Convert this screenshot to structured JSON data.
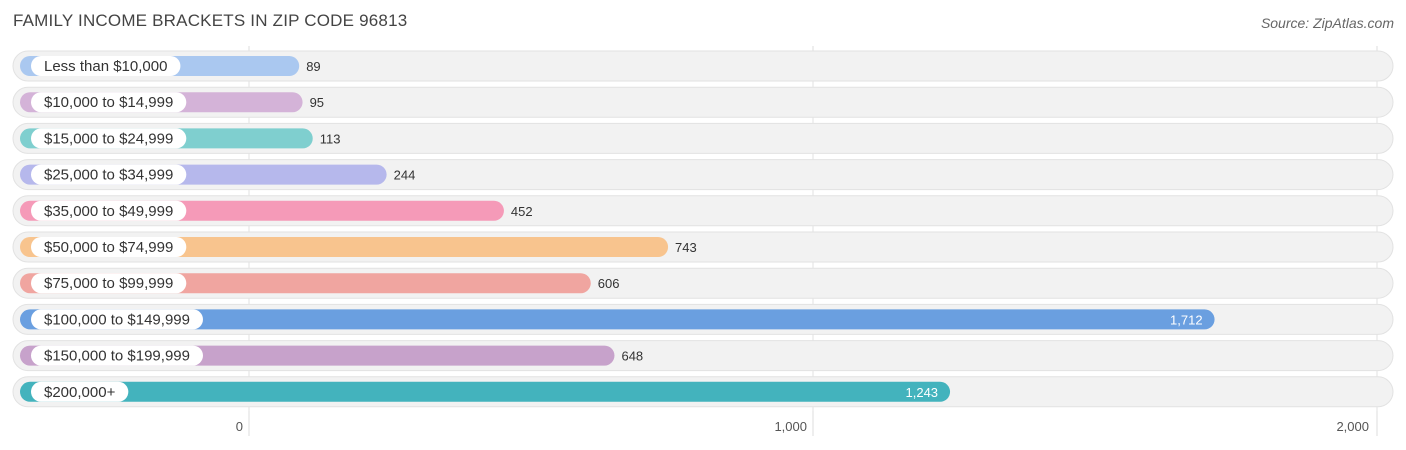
{
  "title": "FAMILY INCOME BRACKETS IN ZIP CODE 96813",
  "source": "Source: ZipAtlas.com",
  "chart_data": {
    "type": "bar",
    "orientation": "horizontal",
    "title": "FAMILY INCOME BRACKETS IN ZIP CODE 96813",
    "categories": [
      "Less than $10,000",
      "$10,000 to $14,999",
      "$15,000 to $24,999",
      "$25,000 to $34,999",
      "$35,000 to $49,999",
      "$50,000 to $74,999",
      "$75,000 to $99,999",
      "$100,000 to $149,999",
      "$150,000 to $199,999",
      "$200,000+"
    ],
    "values": [
      89,
      95,
      113,
      244,
      452,
      743,
      606,
      1712,
      648,
      1243
    ],
    "value_labels": [
      "89",
      "95",
      "113",
      "244",
      "452",
      "743",
      "606",
      "1,712",
      "648",
      "1,243"
    ],
    "colors": [
      "#aac8f0",
      "#d4b3d8",
      "#7fcfcf",
      "#b6b8ec",
      "#f59ab8",
      "#f8c48e",
      "#f0a5a0",
      "#6a9fe0",
      "#c7a2cb",
      "#43b3bd"
    ],
    "xlim": [
      0,
      2000
    ],
    "ticks": [
      0,
      1000,
      2000
    ],
    "tick_labels": [
      "0",
      "1,000",
      "2,000"
    ],
    "grid": true,
    "legend": "none"
  }
}
